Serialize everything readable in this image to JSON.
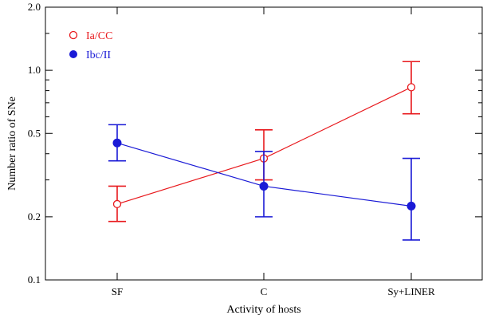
{
  "chart_data": {
    "type": "line",
    "xlabel": "Activity of hosts",
    "ylabel": "Number ratio of SNe",
    "yscale": "log",
    "ylim": [
      0.1,
      2.0
    ],
    "yticks": [
      {
        "value": 0.1,
        "label": "0.1"
      },
      {
        "value": 0.2,
        "label": "0.2"
      },
      {
        "value": 0.5,
        "label": "0.5"
      },
      {
        "value": 1.0,
        "label": "1.0"
      },
      {
        "value": 2.0,
        "label": "2.0"
      }
    ],
    "categories": [
      "SF",
      "C",
      "Sy+LINER"
    ],
    "grid": false,
    "legend_position": "top-left",
    "series": [
      {
        "name": "Ia/CC",
        "color": "#e8191d",
        "marker": "open-circle",
        "values": [
          0.23,
          0.38,
          0.83
        ],
        "err_low": [
          0.19,
          0.3,
          0.62
        ],
        "err_high": [
          0.28,
          0.52,
          1.1
        ]
      },
      {
        "name": "Ibc/II",
        "color": "#1a1ad6",
        "marker": "filled-circle",
        "values": [
          0.45,
          0.28,
          0.225
        ],
        "err_low": [
          0.37,
          0.2,
          0.155
        ],
        "err_high": [
          0.55,
          0.41,
          0.38
        ]
      }
    ]
  }
}
